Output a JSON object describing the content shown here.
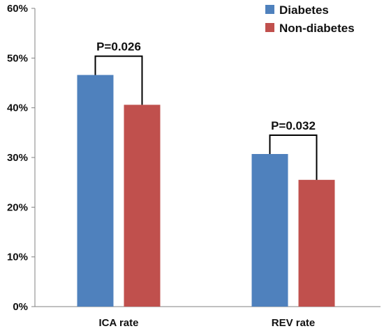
{
  "chart_data": {
    "type": "bar",
    "title": "",
    "xlabel": "",
    "ylabel": "",
    "categories": [
      "ICA rate",
      "REV rate"
    ],
    "series": [
      {
        "name": "Diabetes",
        "color": "#4F81BD",
        "values": [
          46.6,
          30.7
        ]
      },
      {
        "name": "Non-diabetes",
        "color": "#C0504D",
        "values": [
          40.6,
          25.5
        ]
      }
    ],
    "ylim": [
      0,
      60
    ],
    "yticks": [
      "0%",
      "10%",
      "20%",
      "30%",
      "40%",
      "50%",
      "60%"
    ],
    "ytick_values": [
      0,
      10,
      20,
      30,
      40,
      50,
      60
    ],
    "annotations": [
      "P=0.026",
      "P=0.032"
    ],
    "legend_position": "top-right",
    "grid": false
  }
}
